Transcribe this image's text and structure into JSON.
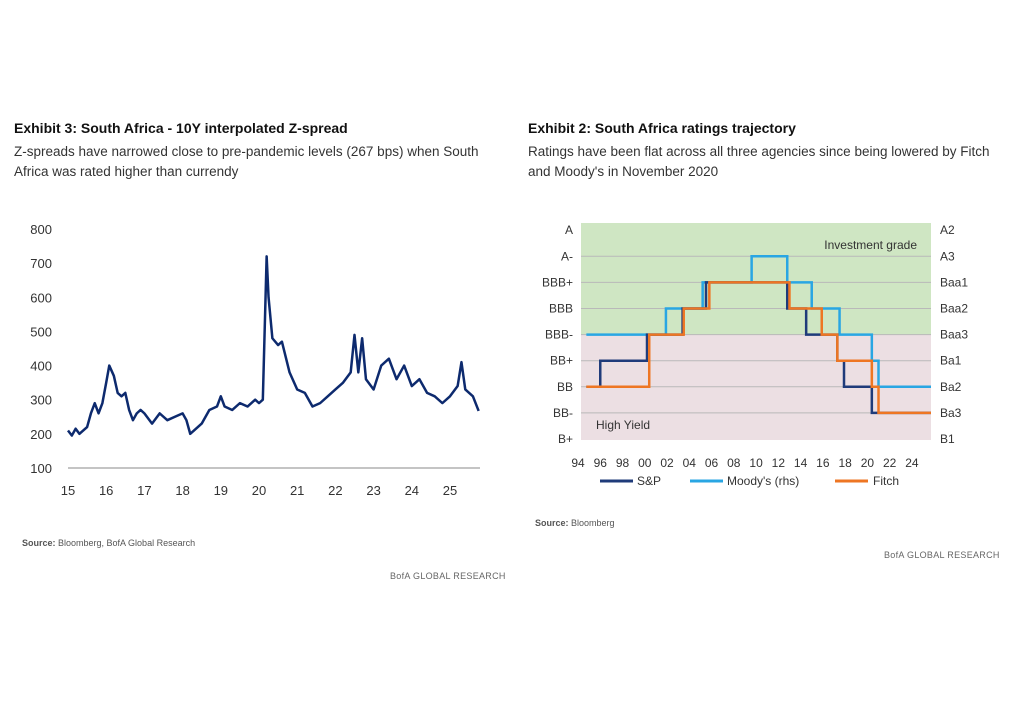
{
  "left": {
    "title": "Exhibit 3: South Africa - 10Y interpolated Z-spread",
    "subtitle": "Z-spreads have narrowed close to pre-pandemic levels (267 bps) when South Africa was rated higher than currendy",
    "source_label": "Source:",
    "source": " Bloomberg, BofA Global Research",
    "brand": "BofA GLOBAL RESEARCH"
  },
  "right": {
    "title": "Exhibit 2: South Africa ratings trajectory",
    "subtitle": "Ratings have been flat across all three agencies since being lowered by Fitch and Moody's in November 2020",
    "source_label": "Source:",
    "source": " Bloomberg",
    "brand": "BofA GLOBAL RESEARCH"
  },
  "chart_data": [
    {
      "type": "line",
      "title": "Exhibit 3: South Africa - 10Y interpolated Z-spread",
      "xlabel": "",
      "ylabel": "",
      "ylim": [
        100,
        800
      ],
      "xlim": [
        2015,
        2025.8
      ],
      "yticks": [
        "100",
        "200",
        "300",
        "400",
        "500",
        "600",
        "700",
        "800"
      ],
      "xticks": [
        "15",
        "16",
        "17",
        "18",
        "19",
        "20",
        "21",
        "22",
        "23",
        "24",
        "25"
      ],
      "grid": false,
      "color": "#0d2a6e",
      "x": [
        2015.0,
        2015.1,
        2015.2,
        2015.3,
        2015.4,
        2015.5,
        2015.6,
        2015.7,
        2015.8,
        2015.9,
        2016.0,
        2016.08,
        2016.2,
        2016.3,
        2016.4,
        2016.5,
        2016.6,
        2016.7,
        2016.8,
        2016.9,
        2017.0,
        2017.2,
        2017.4,
        2017.6,
        2017.8,
        2018.0,
        2018.1,
        2018.2,
        2018.3,
        2018.5,
        2018.7,
        2018.9,
        2019.0,
        2019.1,
        2019.3,
        2019.5,
        2019.7,
        2019.9,
        2020.0,
        2020.1,
        2020.2,
        2020.25,
        2020.35,
        2020.5,
        2020.6,
        2020.8,
        2021.0,
        2021.2,
        2021.4,
        2021.6,
        2021.8,
        2022.0,
        2022.2,
        2022.4,
        2022.5,
        2022.6,
        2022.7,
        2022.8,
        2023.0,
        2023.2,
        2023.4,
        2023.6,
        2023.8,
        2024.0,
        2024.2,
        2024.4,
        2024.6,
        2024.8,
        2025.0,
        2025.2,
        2025.3,
        2025.4,
        2025.6,
        2025.75
      ],
      "values": [
        210,
        195,
        215,
        200,
        210,
        220,
        260,
        290,
        260,
        290,
        350,
        400,
        370,
        320,
        310,
        320,
        270,
        240,
        260,
        270,
        260,
        230,
        260,
        240,
        250,
        260,
        240,
        200,
        210,
        230,
        270,
        280,
        310,
        280,
        270,
        290,
        280,
        300,
        290,
        300,
        720,
        600,
        480,
        460,
        470,
        380,
        330,
        320,
        280,
        290,
        310,
        330,
        350,
        380,
        490,
        380,
        480,
        360,
        330,
        400,
        420,
        360,
        400,
        340,
        360,
        320,
        310,
        290,
        310,
        340,
        410,
        330,
        310,
        267
      ]
    },
    {
      "type": "line",
      "subtype": "step",
      "title": "Exhibit 2: South Africa ratings trajectory",
      "left_axis": [
        "B+",
        "BB-",
        "BB",
        "BB+",
        "BBB-",
        "BBB",
        "BBB+",
        "A-",
        "A"
      ],
      "right_axis": [
        "B1",
        "Ba3",
        "Ba2",
        "Ba1",
        "Baa3",
        "Baa2",
        "Baa1",
        "A3",
        "A2"
      ],
      "xticks": [
        "94",
        "96",
        "98",
        "00",
        "02",
        "04",
        "06",
        "08",
        "10",
        "12",
        "14",
        "16",
        "18",
        "20",
        "22",
        "24"
      ],
      "xlim": [
        1994,
        2025.7
      ],
      "regions": [
        {
          "label": "Investment grade",
          "from": "BBB-",
          "to": "A",
          "color": "#cfe6c3"
        },
        {
          "label": "High Yield",
          "from": "B+",
          "to": "BBB-",
          "color": "#ecdfe3"
        }
      ],
      "legend": "bottom",
      "series": [
        {
          "name": "S&P",
          "color": "#1f3b7a",
          "steps": [
            [
              1994.75,
              "BB"
            ],
            [
              1996,
              "BB+"
            ],
            [
              2000.2,
              "BBB-"
            ],
            [
              2003.4,
              "BBB"
            ],
            [
              2005.5,
              "BBB+"
            ],
            [
              2012.8,
              "BBB"
            ],
            [
              2014.5,
              "BBB-"
            ],
            [
              2017.3,
              "BB+"
            ],
            [
              2017.9,
              "BB"
            ],
            [
              2020.4,
              "BB-"
            ]
          ]
        },
        {
          "name": "Moody's (rhs)",
          "color": "#29a6e3",
          "steps": [
            [
              1994.75,
              "Baa3"
            ],
            [
              2001.9,
              "Baa2"
            ],
            [
              2005.2,
              "Baa1"
            ],
            [
              2009.6,
              "A3"
            ],
            [
              2012.8,
              "Baa1"
            ],
            [
              2015,
              "Baa2"
            ],
            [
              2017.5,
              "Baa3"
            ],
            [
              2020.4,
              "Ba1"
            ],
            [
              2021,
              "Ba2"
            ]
          ]
        },
        {
          "name": "Fitch",
          "color": "#ee7623",
          "steps": [
            [
              1994.75,
              "BB"
            ],
            [
              2000.4,
              "BBB-"
            ],
            [
              2003.5,
              "BBB"
            ],
            [
              2005.8,
              "BBB+"
            ],
            [
              2013,
              "BBB"
            ],
            [
              2015.9,
              "BBB-"
            ],
            [
              2017.3,
              "BB+"
            ],
            [
              2020.4,
              "BB"
            ],
            [
              2021,
              "BB-"
            ]
          ]
        }
      ]
    }
  ]
}
